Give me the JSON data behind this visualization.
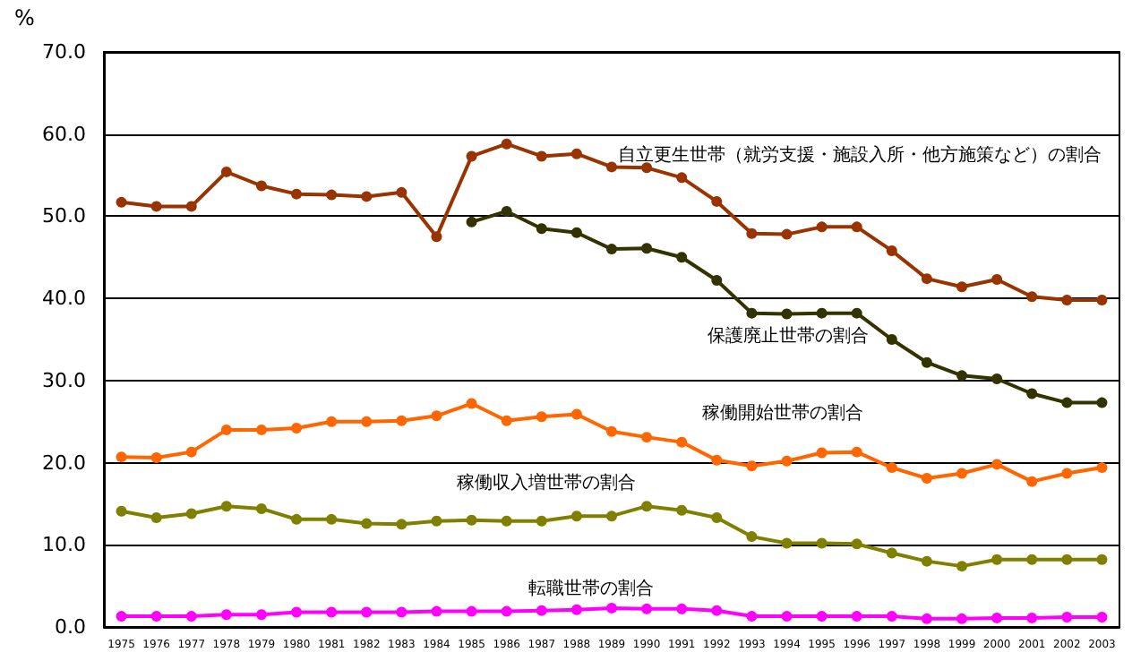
{
  "chart_data": {
    "type": "line",
    "ylabel": "%",
    "categories": [
      "1975",
      "1976",
      "1977",
      "1978",
      "1979",
      "1980",
      "1981",
      "1982",
      "1983",
      "1984",
      "1985",
      "1986",
      "1987",
      "1988",
      "1989",
      "1990",
      "1991",
      "1992",
      "1993",
      "1994",
      "1995",
      "1996",
      "1997",
      "1998",
      "1999",
      "2000",
      "2001",
      "2002",
      "2003"
    ],
    "series": [
      {
        "name": "自立更生世帯（就労支援・施設入所・他方施策など）の割合",
        "color": "#993300",
        "values": [
          51.7,
          51.2,
          51.2,
          55.4,
          53.7,
          52.7,
          52.6,
          52.4,
          52.9,
          47.5,
          57.3,
          58.8,
          57.3,
          57.6,
          56.0,
          55.9,
          54.7,
          51.8,
          47.9,
          47.8,
          48.7,
          48.7,
          45.8,
          42.4,
          41.4,
          42.3,
          40.2,
          39.8,
          39.8
        ]
      },
      {
        "name": "保護廃止世帯の割合",
        "color": "#333300",
        "values": [
          null,
          null,
          null,
          null,
          null,
          null,
          null,
          null,
          null,
          null,
          49.3,
          50.6,
          48.5,
          48.0,
          46.0,
          46.1,
          45.0,
          42.2,
          38.2,
          38.1,
          38.2,
          38.2,
          35.0,
          32.2,
          30.6,
          30.2,
          28.4,
          27.3,
          27.3
        ]
      },
      {
        "name": "稼働開始世帯の割合",
        "color": "#ff6600",
        "values": [
          20.7,
          20.6,
          21.3,
          24.0,
          24.0,
          24.2,
          25.0,
          25.0,
          25.1,
          25.7,
          27.2,
          25.1,
          25.6,
          25.9,
          23.8,
          23.1,
          22.5,
          20.3,
          19.6,
          20.2,
          21.2,
          21.3,
          19.4,
          18.1,
          18.7,
          19.8,
          17.7,
          18.7,
          19.4
        ]
      },
      {
        "name": "稼働収入増世帯の割合",
        "color": "#808000",
        "values": [
          14.1,
          13.3,
          13.8,
          14.7,
          14.4,
          13.1,
          13.1,
          12.6,
          12.5,
          12.9,
          13.0,
          12.9,
          12.9,
          13.5,
          13.5,
          14.7,
          14.2,
          13.3,
          11.0,
          10.2,
          10.2,
          10.1,
          9.0,
          8.0,
          7.4,
          8.2,
          8.2,
          8.2,
          8.2
        ]
      },
      {
        "name": "転職世帯の割合",
        "color": "#ff00ff",
        "values": [
          1.3,
          1.3,
          1.3,
          1.5,
          1.5,
          1.8,
          1.8,
          1.8,
          1.8,
          1.9,
          1.9,
          1.9,
          2.0,
          2.1,
          2.3,
          2.2,
          2.2,
          2.0,
          1.3,
          1.3,
          1.3,
          1.3,
          1.3,
          1.0,
          1.0,
          1.1,
          1.1,
          1.2,
          1.2
        ]
      }
    ],
    "ylim": [
      0,
      70
    ],
    "yticks": [
      {
        "value": 0,
        "label": "0.0"
      },
      {
        "value": 10,
        "label": "10.0"
      },
      {
        "value": 20,
        "label": "20.0"
      },
      {
        "value": 30,
        "label": "30.0"
      },
      {
        "value": 40,
        "label": "40.0"
      },
      {
        "value": 50,
        "label": "50.0"
      },
      {
        "value": 60,
        "label": "60.0"
      },
      {
        "value": 70,
        "label": "70.0"
      }
    ],
    "grid": "y",
    "legend": false,
    "marker": "circle",
    "line_style": "solid"
  }
}
